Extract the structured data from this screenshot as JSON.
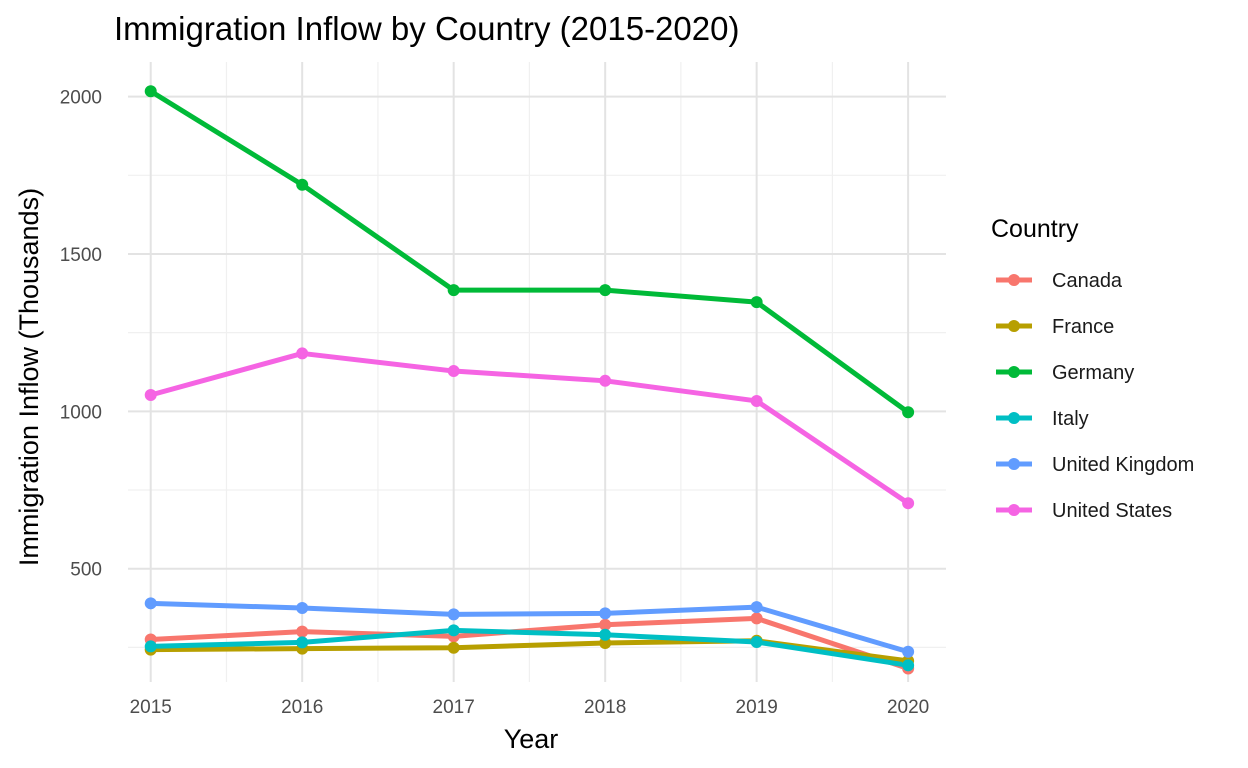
{
  "chart_data": {
    "type": "line",
    "title": "Immigration Inflow by Country (2015-2020)",
    "xlabel": "Year",
    "ylabel": "Immigration Inflow (Thousands)",
    "x": [
      2015,
      2016,
      2017,
      2018,
      2019,
      2020
    ],
    "xlim": [
      2014.85,
      2020.25
    ],
    "ylim": [
      140,
      2110
    ],
    "y_ticks": [
      500,
      1000,
      1500,
      2000
    ],
    "x_ticks": [
      2015,
      2016,
      2017,
      2018,
      2019,
      2020
    ],
    "grid": true,
    "legend_title": "Country",
    "legend_position": "right",
    "series": [
      {
        "name": "Canada",
        "color": "#F8766D",
        "values": [
          275,
          300,
          285,
          322,
          342,
          183
        ]
      },
      {
        "name": "France",
        "color": "#B79F00",
        "values": [
          243,
          246,
          249,
          264,
          271,
          207
        ]
      },
      {
        "name": "Germany",
        "color": "#00BA38",
        "values": [
          2017,
          1720,
          1385,
          1385,
          1347,
          997
        ]
      },
      {
        "name": "Italy",
        "color": "#00BFC4",
        "values": [
          253,
          266,
          304,
          290,
          267,
          193
        ]
      },
      {
        "name": "United Kingdom",
        "color": "#619CFF",
        "values": [
          390,
          375,
          355,
          358,
          378,
          236
        ]
      },
      {
        "name": "United States",
        "color": "#F564E3",
        "values": [
          1052,
          1184,
          1128,
          1097,
          1033,
          708
        ]
      }
    ]
  }
}
